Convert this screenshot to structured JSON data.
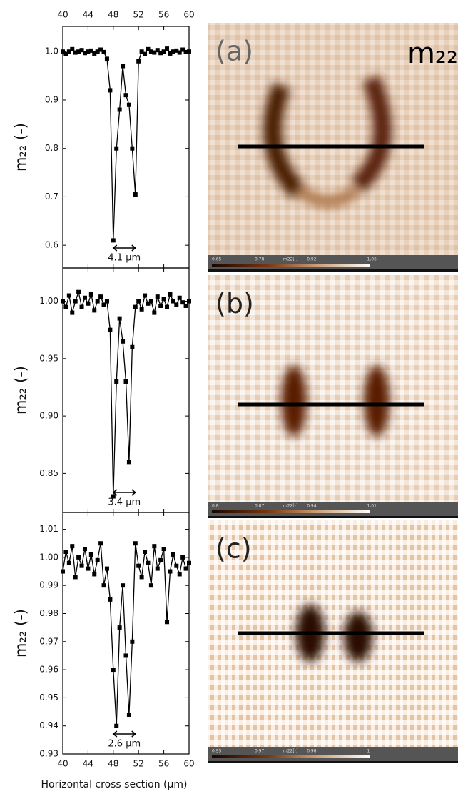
{
  "chart_data": [
    {
      "type": "line",
      "y_label": "m₂₂ (-)",
      "color": "#000000",
      "x": [
        40,
        40.5,
        41,
        41.5,
        42,
        42.5,
        43,
        43.5,
        44,
        44.5,
        45,
        45.5,
        46,
        46.5,
        47,
        47.5,
        48,
        48.5,
        49,
        49.5,
        50,
        50.5,
        51,
        51.5,
        52,
        52.5,
        53,
        53.5,
        54,
        54.5,
        55,
        55.5,
        56,
        56.5,
        57,
        57.5,
        58,
        58.5,
        59,
        59.5,
        60
      ],
      "values": [
        1.0,
        0.995,
        1.0,
        1.005,
        0.998,
        1.0,
        1.003,
        0.997,
        1.0,
        1.002,
        0.996,
        1.0,
        1.004,
        0.999,
        0.985,
        0.92,
        0.61,
        0.8,
        0.88,
        0.97,
        0.91,
        0.89,
        0.8,
        0.705,
        0.98,
        1.0,
        0.995,
        1.005,
        1.0,
        0.998,
        1.003,
        0.997,
        1.0,
        1.006,
        0.996,
        1.0,
        1.002,
        0.998,
        1.004,
        0.999,
        1.0
      ],
      "xlim": [
        40,
        60
      ],
      "xticks": [
        40,
        44,
        48,
        52,
        56,
        60
      ],
      "ylim": [
        0.553,
        1.052
      ],
      "yticks": [
        0.6,
        0.7,
        0.8,
        0.9,
        {
          "value": 1,
          "label": "1.0"
        }
      ],
      "annotation": "4.1 µm"
    },
    {
      "type": "line",
      "y_label": "m₂₂ (-)",
      "color": "#000000",
      "x": [
        40,
        40.5,
        41,
        41.5,
        42,
        42.5,
        43,
        43.5,
        44,
        44.5,
        45,
        45.5,
        46,
        46.5,
        47,
        47.5,
        48,
        48.5,
        49,
        49.5,
        50,
        50.5,
        51,
        51.5,
        52,
        52.5,
        53,
        53.5,
        54,
        54.5,
        55,
        55.5,
        56,
        56.5,
        57,
        57.5,
        58,
        58.5,
        59,
        59.5,
        60
      ],
      "values": [
        1.0,
        0.995,
        1.005,
        0.99,
        1.0,
        1.008,
        0.995,
        1.003,
        0.998,
        1.006,
        0.992,
        1.0,
        1.004,
        0.997,
        1.0,
        0.975,
        0.83,
        0.93,
        0.985,
        0.965,
        0.93,
        0.86,
        0.96,
        0.995,
        1.0,
        0.993,
        1.005,
        0.998,
        1.0,
        0.99,
        1.004,
        0.996,
        1.002,
        0.995,
        1.006,
        1.0,
        0.997,
        1.003,
        0.999,
        0.996,
        1.0
      ],
      "xlim": [
        40,
        60
      ],
      "xticks": [
        40,
        44,
        48,
        52,
        56,
        60
      ],
      "ylim": [
        0.816,
        1.029
      ],
      "yticks": [
        0.85,
        {
          "value": 0.9,
          "label": "0.90"
        },
        0.95,
        {
          "value": 1,
          "label": "1.00"
        }
      ],
      "annotation": "3.4 µm"
    },
    {
      "type": "line",
      "y_label": "m₂₂ (-)",
      "color": "#000000",
      "x_label": "Horizontal cross section (µm)",
      "x": [
        40,
        40.5,
        41,
        41.5,
        42,
        42.5,
        43,
        43.5,
        44,
        44.5,
        45,
        45.5,
        46,
        46.5,
        47,
        47.5,
        48,
        48.5,
        49,
        49.5,
        50,
        50.5,
        51,
        51.5,
        52,
        52.5,
        53,
        53.5,
        54,
        54.5,
        55,
        55.5,
        56,
        56.5,
        57,
        57.5,
        58,
        58.5,
        59,
        59.5,
        60
      ],
      "values": [
        0.995,
        1.002,
        0.998,
        1.004,
        0.993,
        1.0,
        0.997,
        1.003,
        0.996,
        1.001,
        0.994,
        0.999,
        1.005,
        0.99,
        0.996,
        0.985,
        0.96,
        0.94,
        0.975,
        0.99,
        0.965,
        0.944,
        0.97,
        1.005,
        0.997,
        0.993,
        1.002,
        0.998,
        0.99,
        1.004,
        0.996,
        0.999,
        1.003,
        0.977,
        0.995,
        1.001,
        0.997,
        0.994,
        1.0,
        0.996,
        0.998
      ],
      "xlim": [
        40,
        60
      ],
      "xticks": [
        40,
        44,
        48,
        52,
        56,
        60
      ],
      "ylim": [
        0.93,
        1.016
      ],
      "yticks": [
        0.93,
        0.94,
        0.95,
        0.96,
        0.97,
        0.98,
        0.99,
        {
          "value": 1,
          "label": "1.00"
        },
        1.01
      ],
      "annotation": "2.6 µm"
    }
  ],
  "images": [
    {
      "label": "(a)",
      "title": "m₂₂",
      "colorbar": [
        "0,65",
        "0,78",
        "m22[-]",
        "0,92",
        "1,05"
      ]
    },
    {
      "label": "(b)",
      "colorbar": [
        "0,8",
        "0,87",
        "m22[-]",
        "0,94",
        "1,01"
      ]
    },
    {
      "label": "(c)",
      "colorbar": [
        "0,95",
        "0,97",
        "m22[-]",
        "0,98",
        "1"
      ]
    }
  ]
}
